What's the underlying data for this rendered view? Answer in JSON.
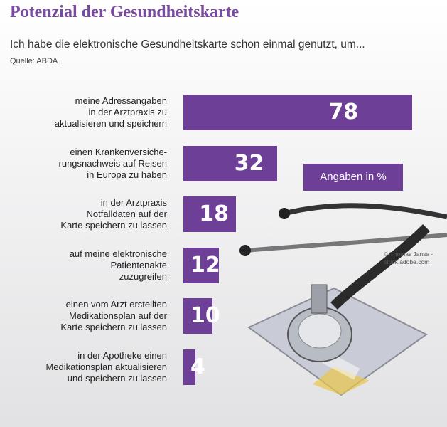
{
  "chart_data": {
    "type": "bar",
    "orientation": "horizontal",
    "title": "Potenzial der Gesundheitskarte",
    "subtitle": "Ich habe die elektronische Gesundheitskarte schon einmal genutzt, um...",
    "source": "Quelle: ABDA",
    "unit_note": "Angaben in %",
    "credit": "© Thomas Jansa - stock.adobe.com",
    "categories": [
      "meine Adressangaben\nin der Arztpraxis zu\naktualisieren und speichern",
      "einen Krankenversiche-\nrungsnachweis auf Reisen\nin Europa zu haben",
      "in der Arztpraxis\nNotfalldaten auf der\nKarte speichern zu lassen",
      "auf meine elektronische\nPatientenakte\nzuzugreifen",
      "einen vom Arzt erstellten\nMedikationsplan auf der\nKarte speichern zu lassen",
      "in der Apotheke einen\nMedikationsplan aktualisieren\nund speichern zu lassen"
    ],
    "values": [
      78,
      32,
      18,
      12,
      10,
      4
    ],
    "color": "#6d3f96"
  }
}
